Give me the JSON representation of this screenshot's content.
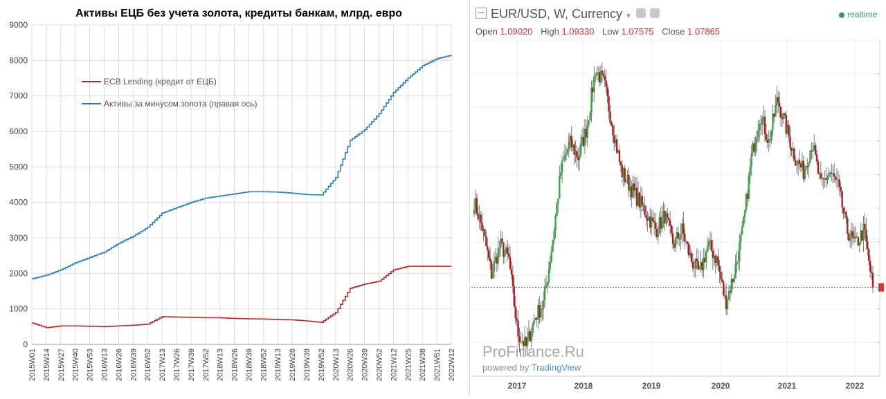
{
  "chart_data": [
    {
      "type": "line",
      "title": "Активы ЕЦБ без учета золота, кредиты банкам, млрд. евро",
      "ylim": [
        0,
        9000
      ],
      "yticks": [
        0,
        1000,
        2000,
        3000,
        4000,
        5000,
        6000,
        7000,
        8000,
        9000
      ],
      "grid": true,
      "legend": "top-left",
      "categories": [
        "2015W01",
        "2015W14",
        "2015W27",
        "2015W40",
        "2015W53",
        "2016W13",
        "2016W26",
        "2016W39",
        "2016W52",
        "2017W13",
        "2017W26",
        "2017W39",
        "2017W52",
        "2018W13",
        "2018W26",
        "2018W39",
        "2018W52",
        "2019W13",
        "2019W26",
        "2019W39",
        "2019W52",
        "2020W13",
        "2020W26",
        "2020W39",
        "2020W52",
        "2021W12",
        "2021W25",
        "2021W38",
        "2021W51",
        "2022W12"
      ],
      "series": [
        {
          "name": "ECB Lending (кредит от ЕЦБ)",
          "color": "#b02a2a",
          "values": [
            600,
            470,
            520,
            520,
            510,
            500,
            520,
            540,
            570,
            780,
            770,
            760,
            750,
            750,
            730,
            720,
            715,
            700,
            690,
            660,
            620,
            900,
            1580,
            1700,
            1780,
            2100,
            2200,
            2200,
            2200,
            2200
          ]
        },
        {
          "name": "Активы за минусом золота (правая ось)",
          "color": "#2b7bb9",
          "values": [
            1850,
            1950,
            2100,
            2300,
            2450,
            2600,
            2850,
            3050,
            3300,
            3700,
            3850,
            4000,
            4120,
            4180,
            4240,
            4300,
            4300,
            4290,
            4260,
            4220,
            4210,
            4700,
            5750,
            6050,
            6500,
            7100,
            7500,
            7850,
            8050,
            8150
          ]
        }
      ]
    },
    {
      "type": "candlestick",
      "header": {
        "symbol": "EUR/USD, W, Currency",
        "open_label": "Open",
        "open": "1.09020",
        "high_label": "High",
        "high": "1.09330",
        "low_label": "Low",
        "low": "1.07575",
        "close_label": "Close",
        "close": "1.07865",
        "realtime": "realtime"
      },
      "x_labels": [
        "2017",
        "2018",
        "2019",
        "2020",
        "2021",
        "2022"
      ],
      "ylim": [
        1.03,
        1.26
      ],
      "colors": {
        "up": "#3aa34a",
        "down": "#a81e1e",
        "wick": "#7a7a7a",
        "last_price_line": "#e5302f"
      },
      "close_path": [
        1.15,
        1.13,
        1.1,
        1.12,
        1.11,
        1.06,
        1.05,
        1.07,
        1.08,
        1.12,
        1.17,
        1.19,
        1.18,
        1.2,
        1.24,
        1.23,
        1.2,
        1.17,
        1.16,
        1.15,
        1.14,
        1.13,
        1.14,
        1.12,
        1.13,
        1.11,
        1.1,
        1.12,
        1.11,
        1.08,
        1.1,
        1.13,
        1.18,
        1.21,
        1.19,
        1.22,
        1.2,
        1.18,
        1.17,
        1.19,
        1.16,
        1.17,
        1.16,
        1.13,
        1.12,
        1.13,
        1.09
      ]
    }
  ],
  "watermark": "ProFinance.Ru",
  "powered_by": "powered by",
  "powered_brand": "TradingView"
}
